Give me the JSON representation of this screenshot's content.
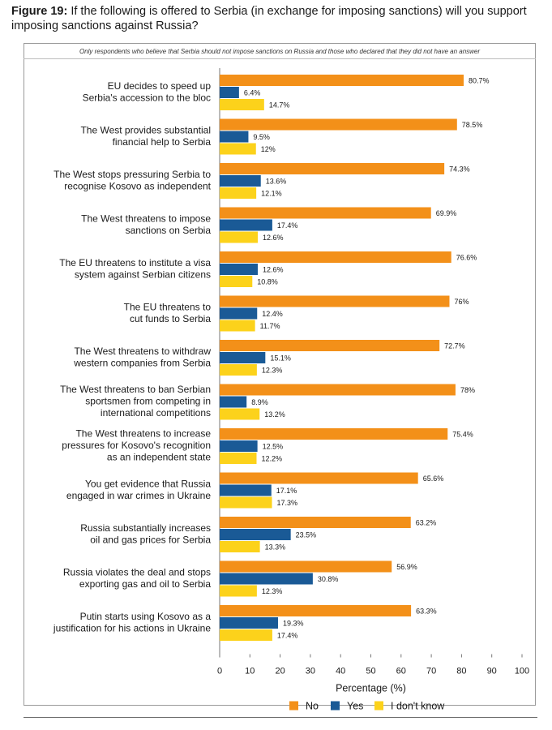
{
  "figure": {
    "label": "Figure 19:",
    "title": "If the following is offered to Serbia (in exchange for imposing sanctions) will you support imposing sanctions against Russia?",
    "note": "Only respondents who believe that Serbia should not impose sanctions on Russia and those who declared that they did not have an answer"
  },
  "chart_data": {
    "type": "bar",
    "orientation": "horizontal",
    "xlabel": "Percentage (%)",
    "xlim": [
      0,
      100
    ],
    "xticks": [
      0,
      10,
      20,
      30,
      40,
      50,
      60,
      70,
      80,
      90,
      100
    ],
    "legend_position": "bottom",
    "categories": [
      "EU decides to speed up\nSerbia's accession to the bloc",
      "The West provides substantial\nfinancial help to Serbia",
      "The West stops pressuring Serbia to\nrecognise Kosovo as independent",
      "The West threatens to impose\nsanctions on Serbia",
      "The EU threatens to institute a visa\nsystem against Serbian citizens",
      "The EU threatens to\ncut funds to Serbia",
      "The West threatens to withdraw\nwestern companies from Serbia",
      "The West threatens to ban Serbian\nsportsmen from competing in\ninternational competitions",
      "The West threatens to increase\npressures for Kosovo's recognition\nas an independent state",
      "You get evidence that Russia\nengaged in war crimes in Ukraine",
      "Russia substantially increases\noil and gas prices for Serbia",
      "Russia violates the deal and stops\nexporting gas and oil to Serbia",
      "Putin starts using Kosovo as a\njustification for his actions in Ukraine"
    ],
    "series": [
      {
        "name": "No",
        "color": "#f39019",
        "values": [
          80.7,
          78.5,
          74.3,
          69.9,
          76.6,
          76,
          72.7,
          78,
          75.4,
          65.6,
          63.2,
          56.9,
          63.3
        ],
        "labels": [
          "80.7%",
          "78.5%",
          "74.3%",
          "69.9%",
          "76.6%",
          "76%",
          "72.7%",
          "78%",
          "75.4%",
          "65.6%",
          "63.2%",
          "56.9%",
          "63.3%"
        ]
      },
      {
        "name": "Yes",
        "color": "#1a5a96",
        "values": [
          6.4,
          9.5,
          13.6,
          17.4,
          12.6,
          12.4,
          15.1,
          8.9,
          12.5,
          17.1,
          23.5,
          30.8,
          19.3
        ],
        "labels": [
          "6.4%",
          "9.5%",
          "13.6%",
          "17.4%",
          "12.6%",
          "12.4%",
          "15.1%",
          "8.9%",
          "12.5%",
          "17.1%",
          "23.5%",
          "30.8%",
          "19.3%"
        ]
      },
      {
        "name": "I don't know",
        "color": "#fcd21b",
        "values": [
          14.7,
          12,
          12.1,
          12.6,
          10.8,
          11.7,
          12.3,
          13.2,
          12.2,
          17.3,
          13.3,
          12.3,
          17.4
        ],
        "labels": [
          "14.7%",
          "12%",
          "12.1%",
          "12.6%",
          "10.8%",
          "11.7%",
          "12.3%",
          "13.2%",
          "12.2%",
          "17.3%",
          "13.3%",
          "12.3%",
          "17.4%"
        ]
      }
    ]
  }
}
